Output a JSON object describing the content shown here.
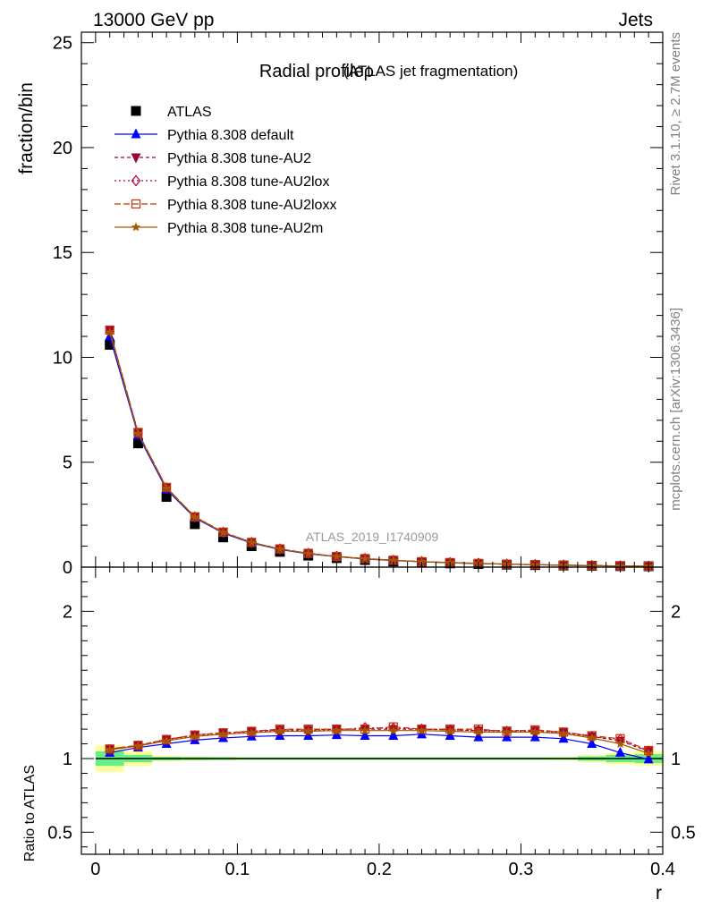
{
  "header": {
    "left": "13000 GeV pp",
    "right": "Jets"
  },
  "side_labels": {
    "rivet": "Rivet 3.1.10, ≥ 2.7M events",
    "mcplots": "mcplots.cern.ch [arXiv:1306.3436]"
  },
  "chart_data": [
    {
      "type": "line",
      "title": "Radial profileρ",
      "subtitle": "(ATLAS jet fragmentation)",
      "watermark": "ATLAS_2019_I1740909",
      "ylabel": "fraction/bin",
      "xlim": [
        -0.01,
        0.4
      ],
      "ylim": [
        0,
        25.5
      ],
      "yticks": [
        0,
        5,
        10,
        15,
        20,
        25
      ],
      "ytick_labels": [
        "0",
        "5",
        "10",
        "15",
        "20",
        "25"
      ],
      "x": [
        0.01,
        0.03,
        0.05,
        0.07,
        0.09,
        0.11,
        0.13,
        0.15,
        0.17,
        0.19,
        0.21,
        0.23,
        0.25,
        0.27,
        0.29,
        0.31,
        0.33,
        0.35,
        0.37,
        0.39
      ],
      "legend_position": "top-left",
      "series": [
        {
          "name": "ATLAS",
          "color": "#000000",
          "marker": "square",
          "dash": "",
          "values": [
            10.6,
            5.9,
            3.35,
            2.05,
            1.42,
            1.0,
            0.73,
            0.55,
            0.43,
            0.34,
            0.27,
            0.22,
            0.18,
            0.15,
            0.12,
            0.1,
            0.08,
            0.065,
            0.05,
            0.04
          ]
        },
        {
          "name": "Pythia 8.308 default",
          "color": "#0000ff",
          "marker": "triangle-up",
          "dash": "",
          "values": [
            11.0,
            6.3,
            3.7,
            2.35,
            1.62,
            1.15,
            0.84,
            0.63,
            0.5,
            0.39,
            0.31,
            0.26,
            0.21,
            0.17,
            0.14,
            0.115,
            0.09,
            0.071,
            0.052,
            0.04
          ]
        },
        {
          "name": "Pythia 8.308 tune-AU2",
          "color": "#9b003c",
          "marker": "triangle-down",
          "dash": "4,3",
          "values": [
            11.3,
            6.4,
            3.8,
            2.4,
            1.67,
            1.18,
            0.87,
            0.66,
            0.51,
            0.41,
            0.33,
            0.26,
            0.22,
            0.18,
            0.14,
            0.12,
            0.095,
            0.075,
            0.056,
            0.042
          ]
        },
        {
          "name": "Pythia 8.308 tune-AU2lox",
          "color": "#b0003c",
          "marker": "diamond-open",
          "dash": "2,3",
          "values": [
            11.25,
            6.38,
            3.78,
            2.39,
            1.66,
            1.17,
            0.86,
            0.65,
            0.51,
            0.41,
            0.32,
            0.26,
            0.21,
            0.18,
            0.14,
            0.12,
            0.094,
            0.075,
            0.057,
            0.042
          ]
        },
        {
          "name": "Pythia 8.308 tune-AU2loxx",
          "color": "#cc3300",
          "marker": "square-open",
          "dash": "7,3",
          "values": [
            11.3,
            6.42,
            3.8,
            2.4,
            1.67,
            1.18,
            0.87,
            0.66,
            0.51,
            0.41,
            0.33,
            0.26,
            0.22,
            0.18,
            0.14,
            0.12,
            0.095,
            0.075,
            0.057,
            0.042
          ]
        },
        {
          "name": "Pythia 8.308 tune-AU2m",
          "color": "#a05a00",
          "marker": "star",
          "dash": "",
          "values": [
            11.2,
            6.37,
            3.77,
            2.38,
            1.65,
            1.17,
            0.86,
            0.65,
            0.5,
            0.4,
            0.32,
            0.26,
            0.21,
            0.17,
            0.14,
            0.115,
            0.093,
            0.074,
            0.055,
            0.041
          ]
        }
      ]
    },
    {
      "type": "line",
      "ylabel": "Ratio to ATLAS",
      "xlabel": "r",
      "xlim": [
        -0.01,
        0.4
      ],
      "ylim": [
        0.35,
        2.3
      ],
      "yticks": [
        0.5,
        1,
        2
      ],
      "ytick_labels": [
        "0.5",
        "1",
        "2"
      ],
      "xticks": [
        0,
        0.1,
        0.2,
        0.3,
        0.4
      ],
      "xtick_labels": [
        "0",
        "0.1",
        "0.2",
        "0.3",
        "0.4"
      ],
      "x": [
        0.01,
        0.03,
        0.05,
        0.07,
        0.09,
        0.11,
        0.13,
        0.15,
        0.17,
        0.19,
        0.21,
        0.23,
        0.25,
        0.27,
        0.29,
        0.31,
        0.33,
        0.35,
        0.37,
        0.39
      ],
      "bands": {
        "x_edges": [
          0.0,
          0.02,
          0.04,
          0.06,
          0.08,
          0.1,
          0.12,
          0.14,
          0.16,
          0.18,
          0.2,
          0.22,
          0.24,
          0.26,
          0.28,
          0.3,
          0.32,
          0.34,
          0.36,
          0.38,
          0.4
        ],
        "stat_color": "#66ee88",
        "syst_color": "#ffff99",
        "stat_halfwidth": [
          0.05,
          0.025,
          0.012,
          0.01,
          0.009,
          0.008,
          0.008,
          0.008,
          0.008,
          0.008,
          0.008,
          0.008,
          0.008,
          0.008,
          0.008,
          0.008,
          0.008,
          0.015,
          0.025,
          0.03
        ],
        "syst_halfwidth": [
          0.09,
          0.05,
          0.02,
          0.015,
          0.012,
          0.01,
          0.01,
          0.01,
          0.01,
          0.01,
          0.01,
          0.01,
          0.01,
          0.01,
          0.01,
          0.01,
          0.012,
          0.025,
          0.04,
          0.05
        ]
      },
      "series": [
        {
          "name": "Pythia 8.308 default",
          "color": "#0000ff",
          "marker": "triangle-up",
          "dash": "",
          "values": [
            1.04,
            1.075,
            1.1,
            1.125,
            1.14,
            1.15,
            1.155,
            1.155,
            1.16,
            1.155,
            1.155,
            1.165,
            1.155,
            1.145,
            1.145,
            1.145,
            1.135,
            1.1,
            1.04,
            0.995
          ]
        },
        {
          "name": "Pythia 8.308 tune-AU2",
          "color": "#9b003c",
          "marker": "triangle-down",
          "dash": "4,3",
          "values": [
            1.065,
            1.09,
            1.13,
            1.16,
            1.175,
            1.185,
            1.195,
            1.195,
            1.2,
            1.2,
            1.2,
            1.2,
            1.195,
            1.19,
            1.19,
            1.19,
            1.18,
            1.15,
            1.12,
            1.05
          ]
        },
        {
          "name": "Pythia 8.308 tune-AU2lox",
          "color": "#b0003c",
          "marker": "diamond-open",
          "dash": "2,3",
          "values": [
            1.06,
            1.085,
            1.125,
            1.155,
            1.17,
            1.18,
            1.19,
            1.19,
            1.195,
            1.21,
            1.205,
            1.2,
            1.195,
            1.19,
            1.185,
            1.185,
            1.175,
            1.15,
            1.13,
            1.05
          ]
        },
        {
          "name": "Pythia 8.308 tune-AU2loxx",
          "color": "#cc3300",
          "marker": "square-open",
          "dash": "7,3",
          "values": [
            1.065,
            1.09,
            1.13,
            1.16,
            1.175,
            1.185,
            1.2,
            1.2,
            1.2,
            1.2,
            1.215,
            1.2,
            1.2,
            1.2,
            1.185,
            1.195,
            1.18,
            1.155,
            1.135,
            1.055
          ]
        },
        {
          "name": "Pythia 8.308 tune-AU2m",
          "color": "#a05a00",
          "marker": "star",
          "dash": "",
          "values": [
            1.06,
            1.085,
            1.12,
            1.15,
            1.165,
            1.175,
            1.185,
            1.185,
            1.19,
            1.19,
            1.19,
            1.19,
            1.185,
            1.18,
            1.18,
            1.18,
            1.17,
            1.14,
            1.1,
            1.035
          ]
        }
      ]
    }
  ]
}
